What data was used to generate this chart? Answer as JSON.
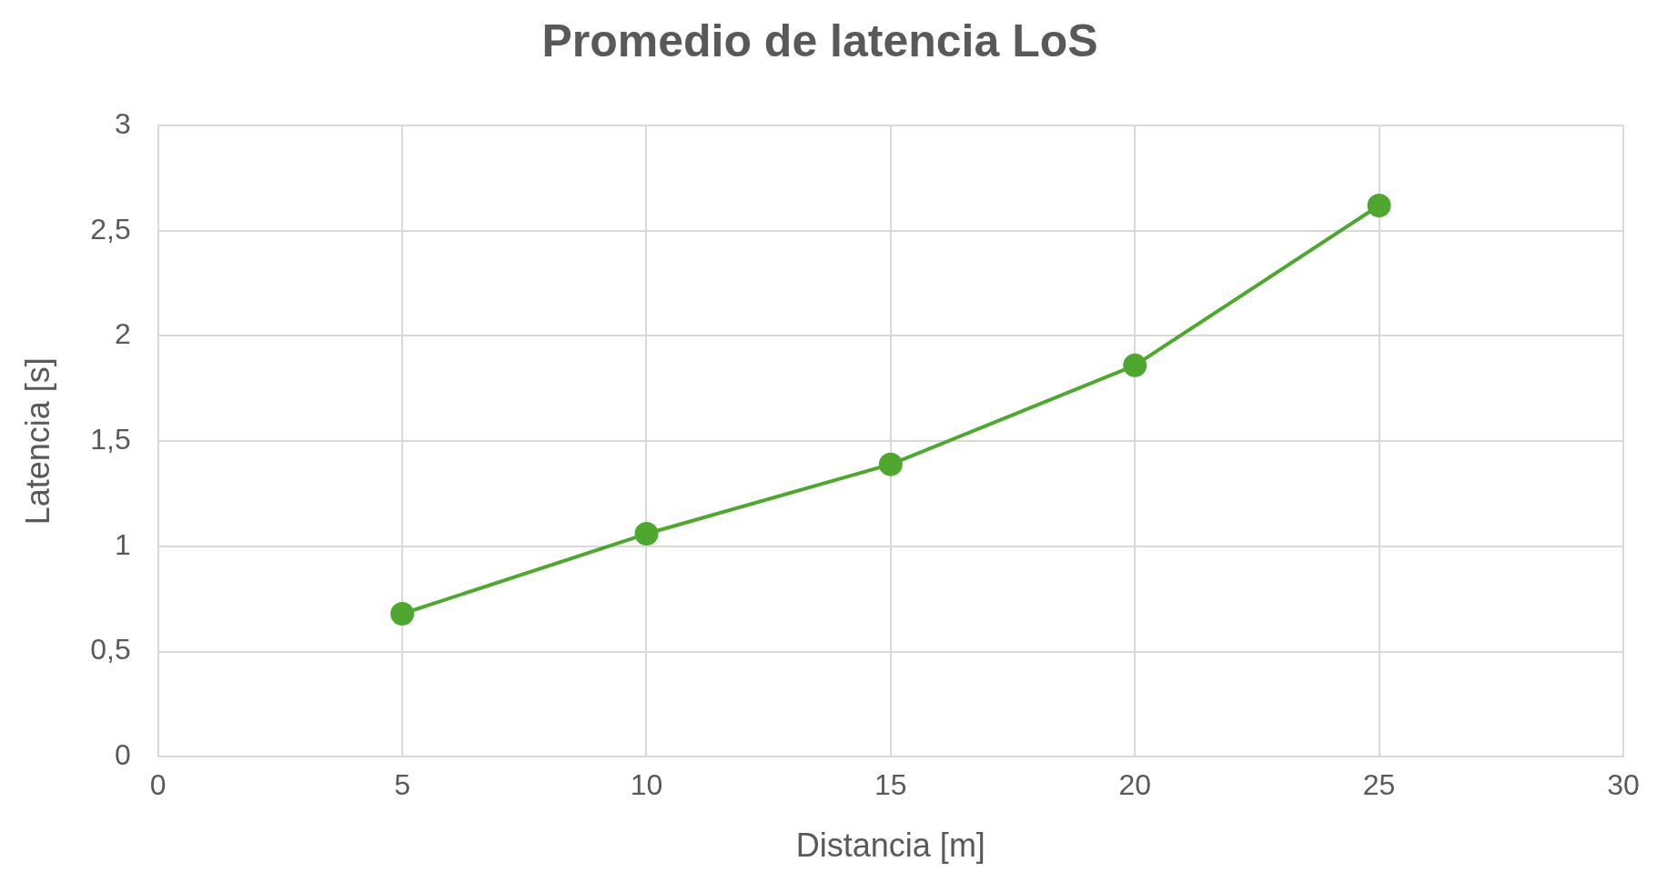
{
  "chart_data": {
    "type": "line",
    "title": "Promedio de latencia LoS",
    "xlabel": "Distancia [m]",
    "ylabel": "Latencia [s]",
    "x": [
      5,
      10,
      15,
      20,
      25
    ],
    "series": [
      {
        "color": "#4ea72e",
        "values": [
          0.68,
          1.06,
          1.39,
          1.86,
          2.62
        ]
      }
    ],
    "xlim": [
      0,
      30
    ],
    "xticks": [
      0,
      5,
      10,
      15,
      20,
      25,
      30
    ],
    "ylim": [
      0,
      3
    ],
    "yticks": [
      0,
      {
        "value": 0.5,
        "label": "0,5"
      },
      1,
      {
        "value": 1.5,
        "label": "1,5"
      },
      2,
      {
        "value": 2.5,
        "label": "2,5"
      },
      3
    ],
    "grid": true,
    "legend": false,
    "marker": "circle",
    "line_style": "solid"
  }
}
